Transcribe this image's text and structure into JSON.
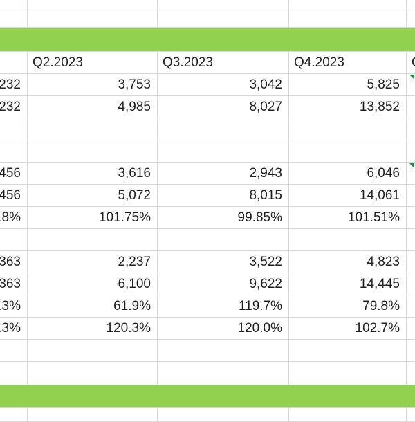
{
  "band_color": "#92d050",
  "headers": [
    "",
    "Q2.2023",
    "Q3.2023",
    "Q4.2023",
    "Q"
  ],
  "rows": [
    [
      "232",
      "3,753",
      "3,042",
      "5,825",
      ""
    ],
    [
      "232",
      "4,985",
      "8,027",
      "13,852",
      ""
    ],
    [
      "",
      "",
      "",
      "",
      ""
    ],
    [
      "",
      "",
      "",
      "",
      ""
    ],
    [
      "456",
      "3,616",
      "2,943",
      "6,046",
      ""
    ],
    [
      "456",
      "5,072",
      "8,015",
      "14,061",
      ""
    ],
    [
      "18%",
      "101.75%",
      "99.85%",
      "101.51%",
      ""
    ],
    [
      "",
      "",
      "",
      "",
      ""
    ],
    [
      "363",
      "2,237",
      "3,522",
      "4,823",
      ""
    ],
    [
      "363",
      "6,100",
      "9,622",
      "14,445",
      ""
    ],
    [
      ".3%",
      "61.9%",
      "119.7%",
      "79.8%",
      ""
    ],
    [
      ".3%",
      "120.3%",
      "120.0%",
      "102.7%",
      ""
    ],
    [
      "",
      "",
      "",
      "",
      ""
    ]
  ]
}
